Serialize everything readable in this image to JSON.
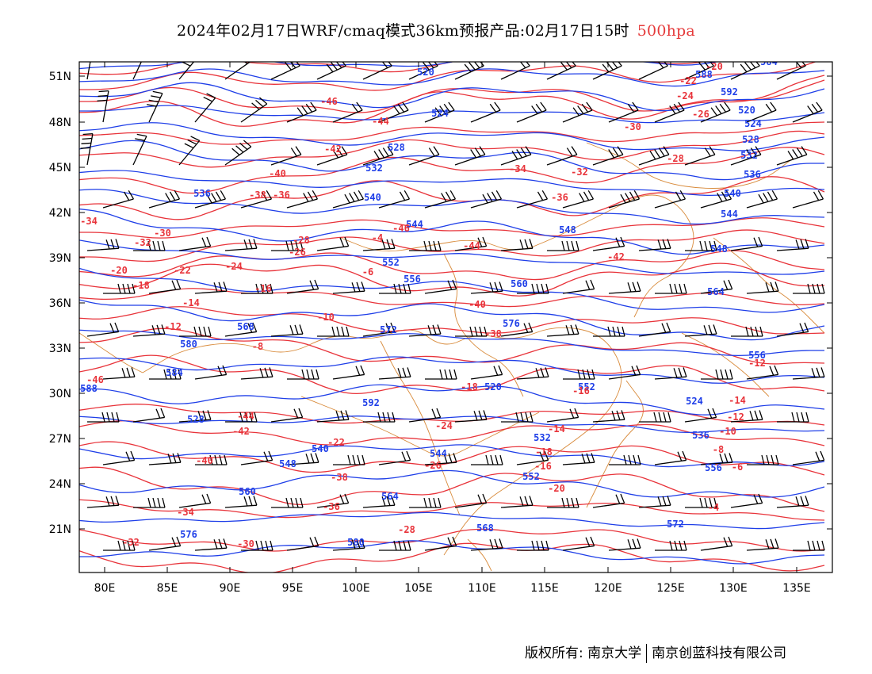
{
  "title": {
    "main": "2024年02月17日WRF/cmaq模式36km预报产品:02月17日15时",
    "level": "500hpa"
  },
  "axes": {
    "lat_labels": [
      "51N",
      "48N",
      "45N",
      "42N",
      "39N",
      "36N",
      "33N",
      "30N",
      "27N",
      "24N",
      "21N"
    ],
    "lon_labels": [
      "80E",
      "85E",
      "90E",
      "95E",
      "100E",
      "105E",
      "110E",
      "115E",
      "120E",
      "125E",
      "130E",
      "135E"
    ]
  },
  "colors": {
    "height": "#1e3ee8",
    "temperature": "#e8333a",
    "border": "#d88a3a",
    "wind": "#000000"
  },
  "height_labels": [
    "520",
    "524",
    "528",
    "532",
    "536",
    "540",
    "544",
    "548",
    "552",
    "556",
    "560",
    "564",
    "568",
    "572",
    "576",
    "580",
    "584",
    "588",
    "592"
  ],
  "temperature_labels": [
    "-46",
    "-44",
    "-42",
    "-40",
    "-38",
    "-36",
    "-34",
    "-32",
    "-30",
    "-28",
    "-26",
    "-24",
    "-22",
    "-20",
    "-18",
    "-16",
    "-14",
    "-12",
    "-10",
    "-8",
    "-6",
    "-4"
  ],
  "copyright": {
    "left": "版权所有: 南京大学",
    "right": "南京创蓝科技有限公司"
  }
}
